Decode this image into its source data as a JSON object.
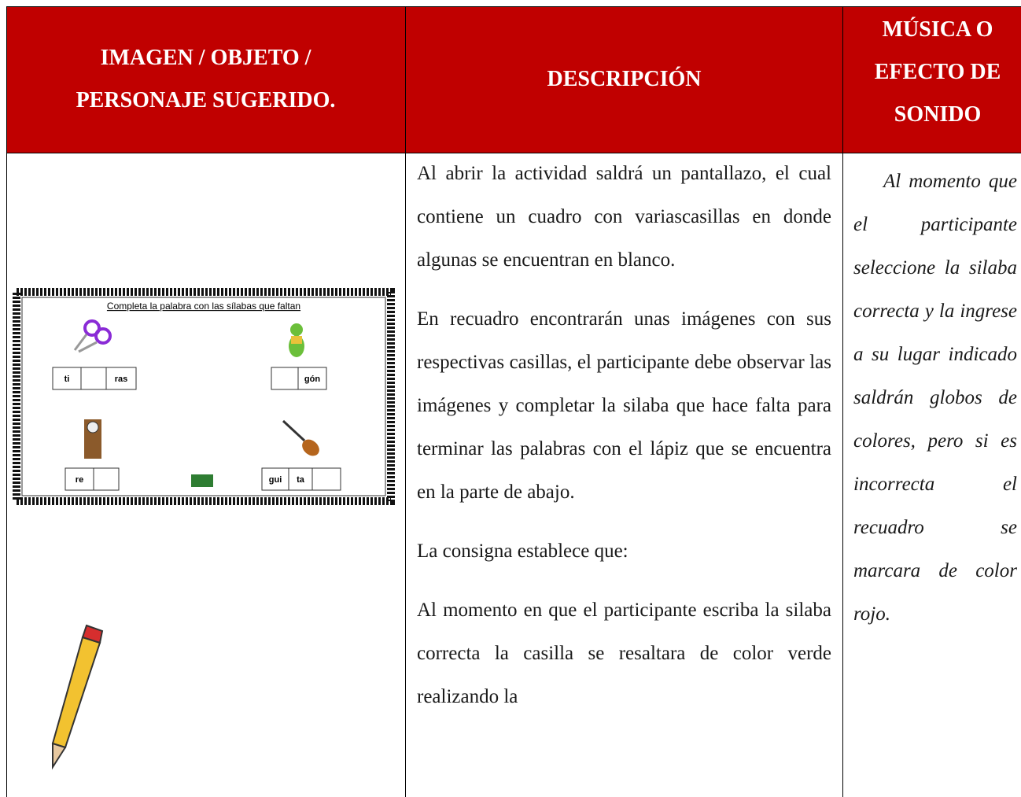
{
  "header": {
    "columns": [
      "IMAGEN / OBJETO / PERSONAJE SUGERIDO.",
      "DESCRIPCIÓN",
      "MÚSICA O EFECTO DE SONIDO"
    ]
  },
  "row": {
    "image": {
      "title": "Completa la palabra con las sílabas que faltan",
      "syllables": [
        "ti",
        "ras",
        "gón",
        "re",
        "gui",
        "ta"
      ]
    },
    "description": [
      "Al abrir la actividad saldrá un pantallazo, el cual contiene un cuadro con variascasillas en donde algunas se encuentran en blanco.",
      "En recuadro encontrarán unas imágenes con sus respectivas casillas, el participante debe observar las imágenes y completar la silaba que hace falta para terminar las palabras con el lápiz que se encuentra en la parte de abajo.",
      "La consigna establece que:",
      "Al momento en que el participante escriba la silaba correcta la casilla se resaltara de color verde realizando la"
    ],
    "sound": "Al momento que el participante seleccione la silaba correcta y la ingrese a su lugar indicado saldrán globos de colores, pero si es incorrecta el recuadro se marcara de color rojo."
  }
}
